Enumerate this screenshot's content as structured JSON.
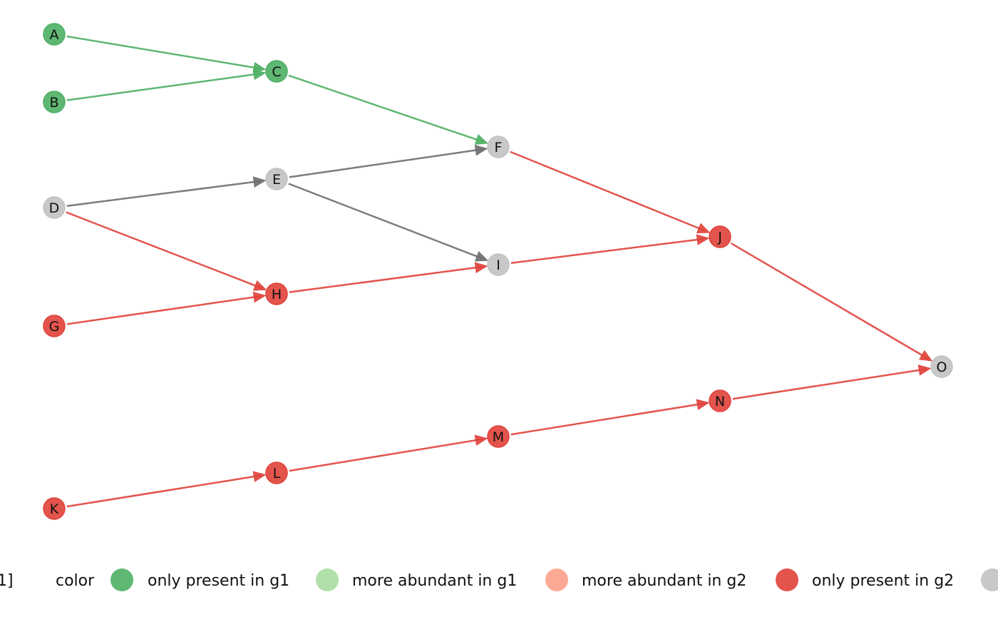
{
  "colors": {
    "only_g1": "#4daf63",
    "more_g1": "#a8dca0",
    "more_g2": "#fca088",
    "only_g2": "#e0413a",
    "neutral": "#c2c2c2",
    "edge_green": "#4daf63",
    "edge_gray": "#6e6e6e",
    "edge_red": "#e0413a"
  },
  "nodes": [
    {
      "id": "A",
      "label": "A",
      "status": "only_g1"
    },
    {
      "id": "B",
      "label": "B",
      "status": "only_g1"
    },
    {
      "id": "C",
      "label": "C",
      "status": "only_g1"
    },
    {
      "id": "D",
      "label": "D",
      "status": "neutral"
    },
    {
      "id": "E",
      "label": "E",
      "status": "neutral"
    },
    {
      "id": "F",
      "label": "F",
      "status": "neutral"
    },
    {
      "id": "G",
      "label": "G",
      "status": "only_g2"
    },
    {
      "id": "H",
      "label": "H",
      "status": "only_g2"
    },
    {
      "id": "I",
      "label": "I",
      "status": "neutral"
    },
    {
      "id": "J",
      "label": "J",
      "status": "only_g2"
    },
    {
      "id": "K",
      "label": "K",
      "status": "only_g2"
    },
    {
      "id": "L",
      "label": "L",
      "status": "only_g2"
    },
    {
      "id": "M",
      "label": "M",
      "status": "only_g2"
    },
    {
      "id": "N",
      "label": "N",
      "status": "only_g2"
    },
    {
      "id": "O",
      "label": "O",
      "status": "neutral"
    }
  ],
  "edges": [
    {
      "from": "A",
      "to": "C",
      "color": "edge_green"
    },
    {
      "from": "B",
      "to": "C",
      "color": "edge_green"
    },
    {
      "from": "C",
      "to": "F",
      "color": "edge_green"
    },
    {
      "from": "D",
      "to": "E",
      "color": "edge_gray"
    },
    {
      "from": "E",
      "to": "F",
      "color": "edge_gray"
    },
    {
      "from": "E",
      "to": "I",
      "color": "edge_gray"
    },
    {
      "from": "D",
      "to": "H",
      "color": "edge_red"
    },
    {
      "from": "G",
      "to": "H",
      "color": "edge_red"
    },
    {
      "from": "H",
      "to": "I",
      "color": "edge_red"
    },
    {
      "from": "F",
      "to": "J",
      "color": "edge_red"
    },
    {
      "from": "I",
      "to": "J",
      "color": "edge_red"
    },
    {
      "from": "J",
      "to": "O",
      "color": "edge_red"
    },
    {
      "from": "K",
      "to": "L",
      "color": "edge_red"
    },
    {
      "from": "L",
      "to": "M",
      "color": "edge_red"
    },
    {
      "from": "M",
      "to": "N",
      "color": "edge_red"
    },
    {
      "from": "N",
      "to": "O",
      "color": "edge_red"
    }
  ],
  "legend": {
    "cut_prefix": "1]",
    "title": "color",
    "items": [
      {
        "label": "only present in g1",
        "status": "only_g1"
      },
      {
        "label": "more abundant in g1",
        "status": "more_g1"
      },
      {
        "label": "more abundant in g2",
        "status": "more_g2"
      },
      {
        "label": "only present in g2",
        "status": "only_g2"
      },
      {
        "label": "",
        "status": "neutral"
      }
    ]
  }
}
